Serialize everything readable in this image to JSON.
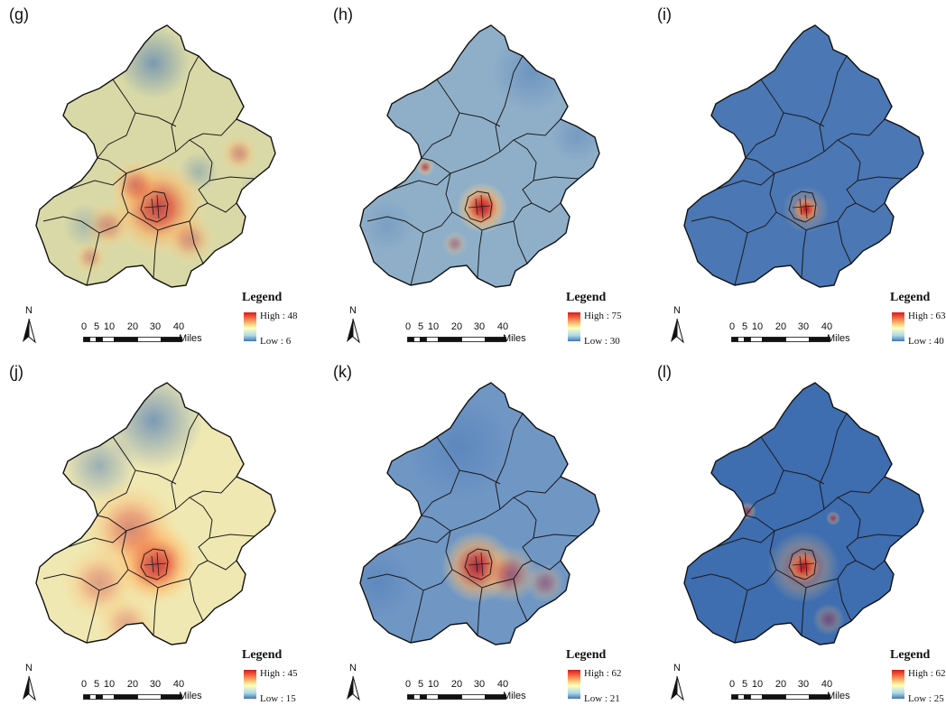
{
  "figure": {
    "panels": [
      {
        "label": "(g)",
        "high": "High : 48",
        "low": "Low : 6",
        "colors": {
          "base": "#d9d9a7",
          "hot": "#d7191c"
        }
      },
      {
        "label": "(h)",
        "high": "High : 75",
        "low": "Low : 30",
        "colors": {
          "base": "#8fafc9",
          "hot": "#d7191c"
        }
      },
      {
        "label": "(i)",
        "high": "High : 63",
        "low": "Low : 40",
        "colors": {
          "base": "#4b77b4",
          "hot": "#d7191c"
        }
      },
      {
        "label": "(j)",
        "high": "High : 45",
        "low": "Low : 15",
        "colors": {
          "base": "#efe8b3",
          "hot": "#d7191c"
        }
      },
      {
        "label": "(k)",
        "high": "High : 62",
        "low": "Low : 21",
        "colors": {
          "base": "#7096c4",
          "hot": "#d7191c"
        }
      },
      {
        "label": "(l)",
        "high": "High : 62",
        "low": "Low : 25",
        "colors": {
          "base": "#3e6db0",
          "hot": "#d7191c"
        }
      }
    ],
    "legend_title": "Legend",
    "north_label": "N",
    "scale": {
      "ticks": [
        "0",
        "5",
        "10",
        "20",
        "30",
        "40"
      ],
      "units": "Miles"
    }
  }
}
